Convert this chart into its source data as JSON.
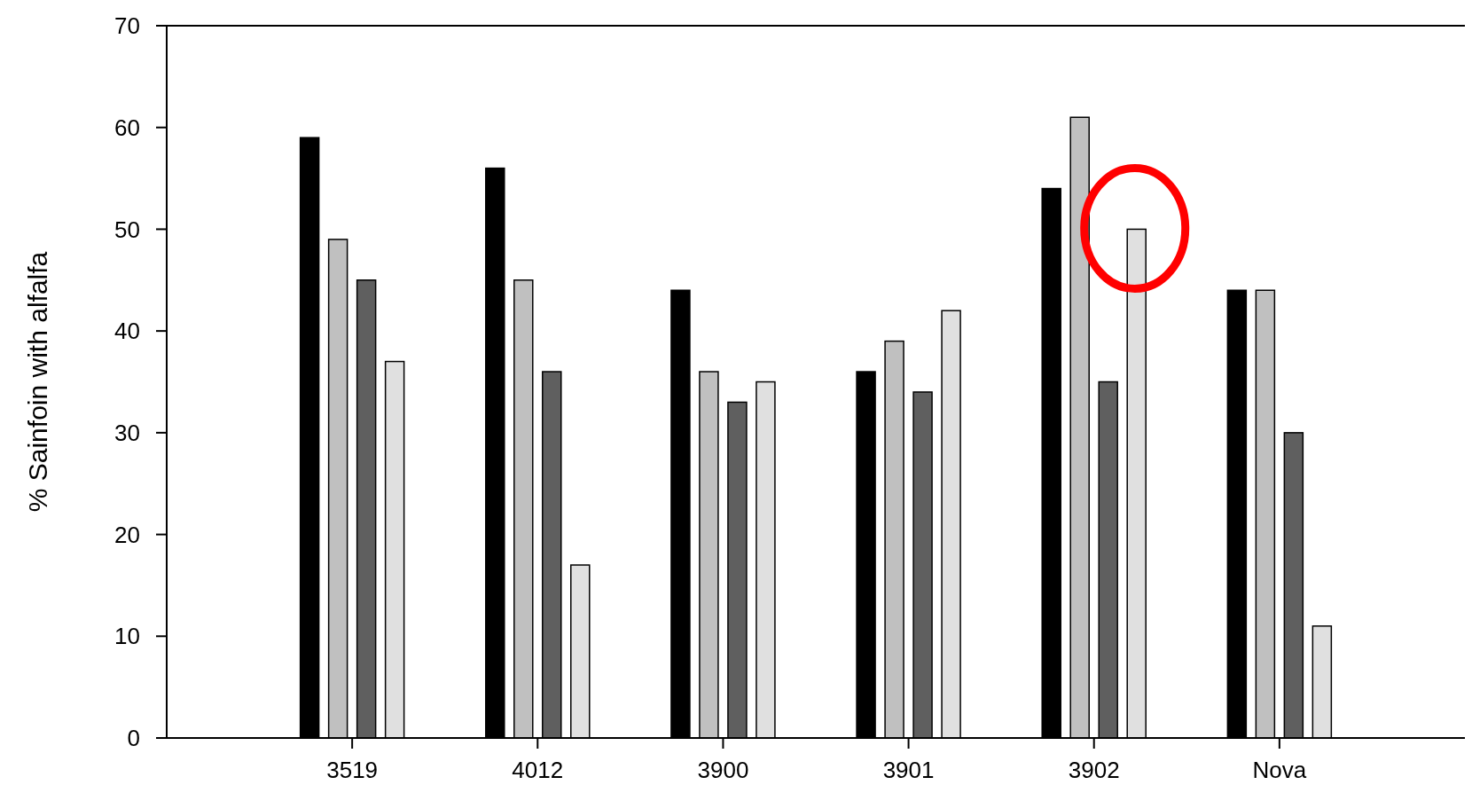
{
  "chart_data": {
    "type": "bar",
    "ylabel": "% Sainfoin with alfalfa",
    "categories": [
      "3519",
      "4012",
      "3900",
      "3901",
      "3902",
      "Nova"
    ],
    "series": [
      {
        "color": "#000000",
        "values": [
          59,
          56,
          44,
          36,
          54,
          44
        ]
      },
      {
        "color": "#c0c0c0",
        "values": [
          49,
          45,
          36,
          39,
          61,
          44
        ]
      },
      {
        "color": "#5f5f5f",
        "values": [
          45,
          36,
          33,
          34,
          35,
          30
        ]
      },
      {
        "color": "#e0e0e0",
        "values": [
          37,
          17,
          35,
          42,
          50,
          11
        ]
      }
    ],
    "ylim": [
      0,
      70
    ],
    "yticks": [
      0,
      10,
      20,
      30,
      40,
      50,
      60,
      70
    ],
    "grid": false
  }
}
